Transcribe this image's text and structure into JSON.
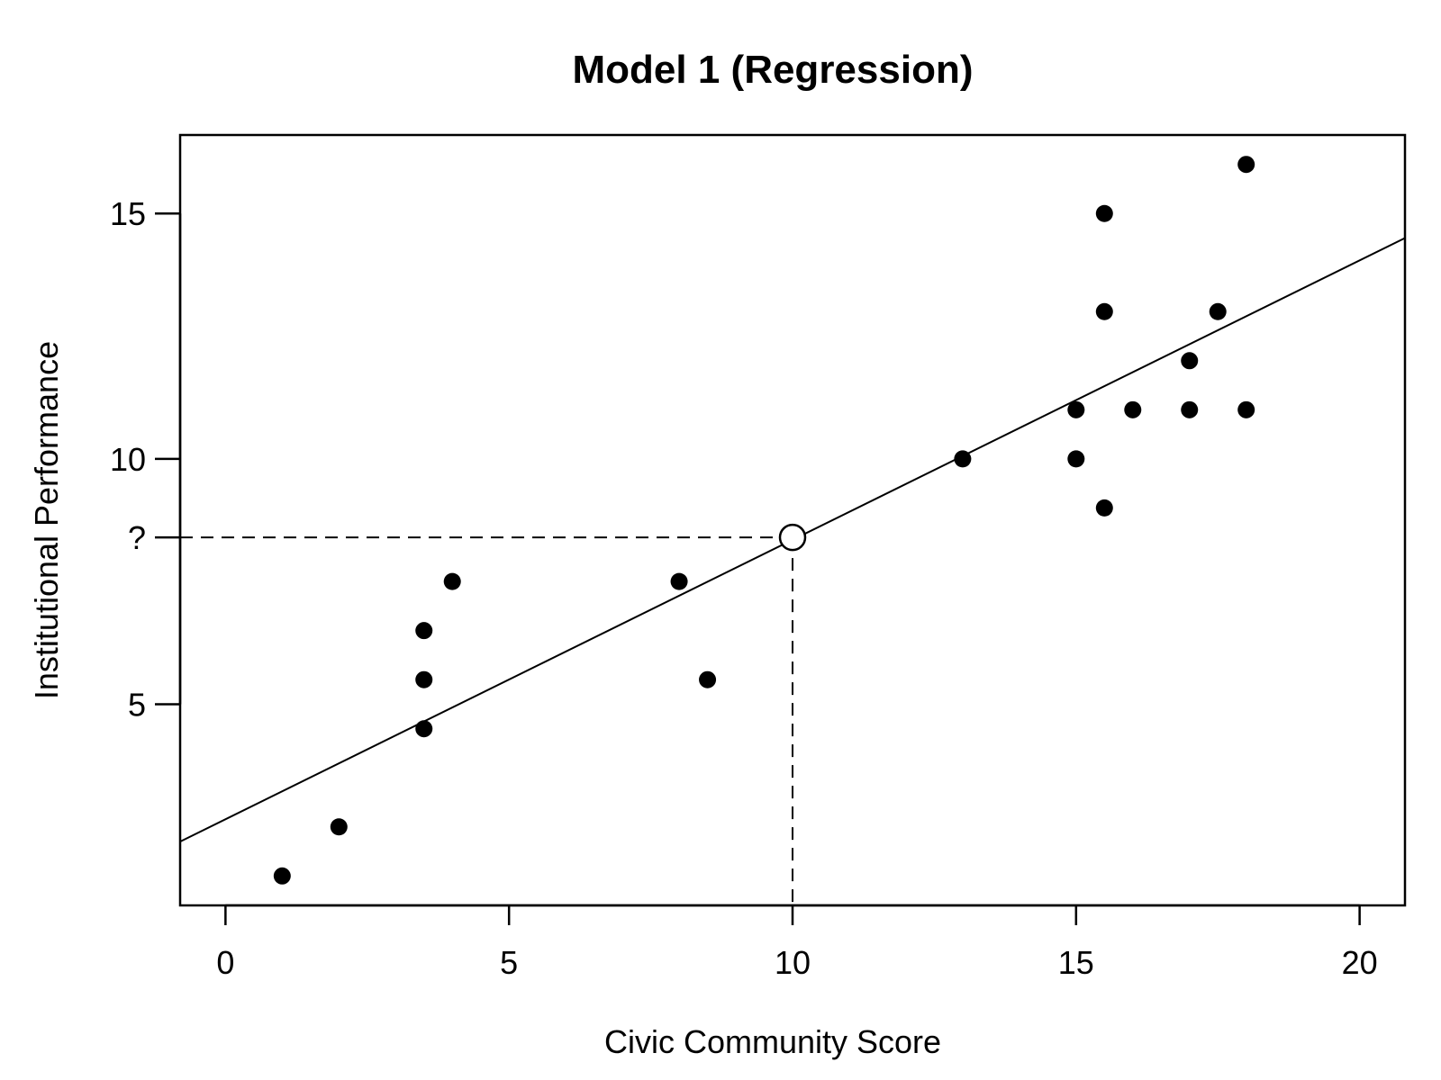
{
  "chart_data": {
    "type": "scatter",
    "title": "Model 1 (Regression)",
    "xlabel": "Civic Community Score",
    "ylabel": "Institutional Performance",
    "xlim": [
      -0.8,
      20.8
    ],
    "ylim": [
      0.9,
      16.6
    ],
    "x_ticks": [
      {
        "value": 0,
        "label": "0"
      },
      {
        "value": 5,
        "label": "5"
      },
      {
        "value": 10,
        "label": "10"
      },
      {
        "value": 15,
        "label": "15"
      },
      {
        "value": 20,
        "label": "20"
      }
    ],
    "y_ticks": [
      {
        "value": 5,
        "label": "5"
      },
      {
        "value": 8.4,
        "label": "?"
      },
      {
        "value": 10,
        "label": "10"
      },
      {
        "value": 15,
        "label": "15"
      }
    ],
    "points": [
      {
        "x": 1,
        "y": 1.5
      },
      {
        "x": 2,
        "y": 2.5
      },
      {
        "x": 3.5,
        "y": 4.5
      },
      {
        "x": 3.5,
        "y": 5.5
      },
      {
        "x": 3.5,
        "y": 6.5
      },
      {
        "x": 4,
        "y": 7.5
      },
      {
        "x": 8,
        "y": 7.5
      },
      {
        "x": 8.5,
        "y": 5.5
      },
      {
        "x": 13,
        "y": 10
      },
      {
        "x": 15,
        "y": 11
      },
      {
        "x": 15,
        "y": 10
      },
      {
        "x": 15.5,
        "y": 15
      },
      {
        "x": 15.5,
        "y": 13
      },
      {
        "x": 15.5,
        "y": 9
      },
      {
        "x": 16,
        "y": 11
      },
      {
        "x": 17,
        "y": 12
      },
      {
        "x": 17,
        "y": 11
      },
      {
        "x": 17.5,
        "y": 13
      },
      {
        "x": 18,
        "y": 16
      },
      {
        "x": 18,
        "y": 11
      }
    ],
    "regression_line": {
      "x0": -0.8,
      "y0": 2.2,
      "x1": 20.8,
      "y1": 14.5
    },
    "prediction": {
      "x": 10,
      "y": 8.4
    },
    "grid": false,
    "colors": {
      "points": "#000000",
      "line": "#000000"
    }
  }
}
